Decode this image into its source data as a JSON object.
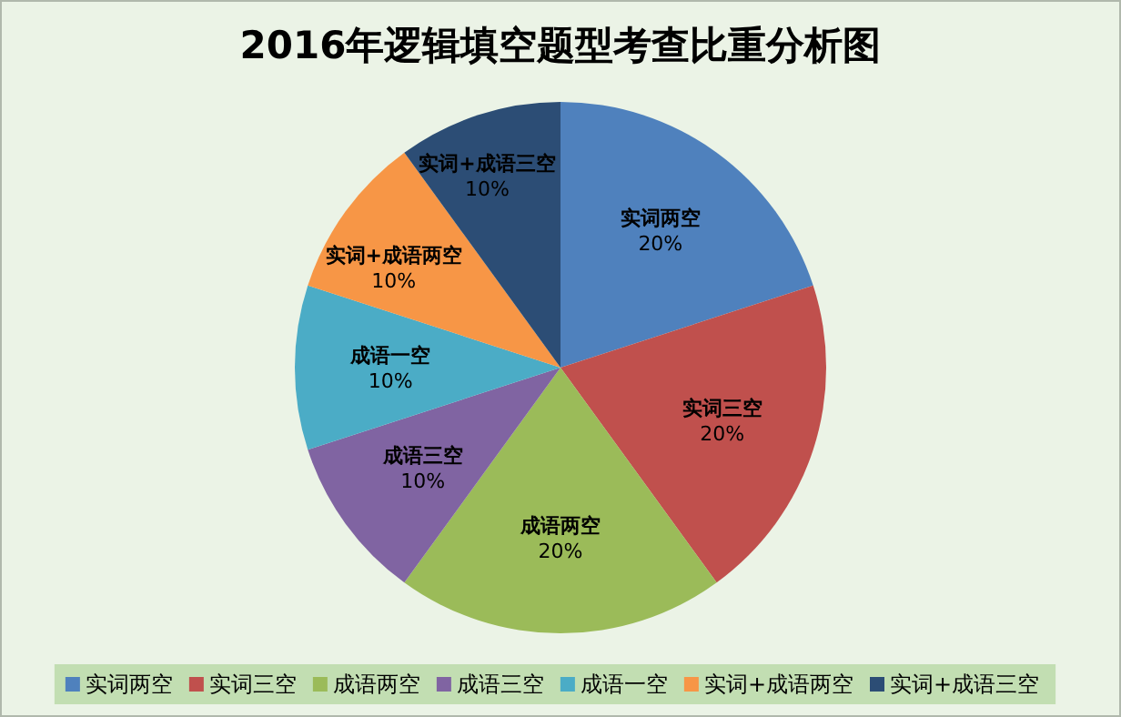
{
  "chart_data": {
    "type": "pie",
    "title": "2016年逻辑填空题型考查比重分析图",
    "categories": [
      "实词两空",
      "实词三空",
      "成语两空",
      "成语三空",
      "成语一空",
      "实词+成语两空",
      "实词+成语三空"
    ],
    "values": [
      20,
      20,
      20,
      10,
      10,
      10,
      10
    ],
    "colors": [
      "#4f81bd",
      "#c0504d",
      "#9bbb59",
      "#8064a2",
      "#4bacc6",
      "#f79646",
      "#2c4d75"
    ],
    "value_labels": [
      "20%",
      "20%",
      "20%",
      "10%",
      "10%",
      "10%",
      "10%"
    ],
    "legend": "bottom"
  }
}
